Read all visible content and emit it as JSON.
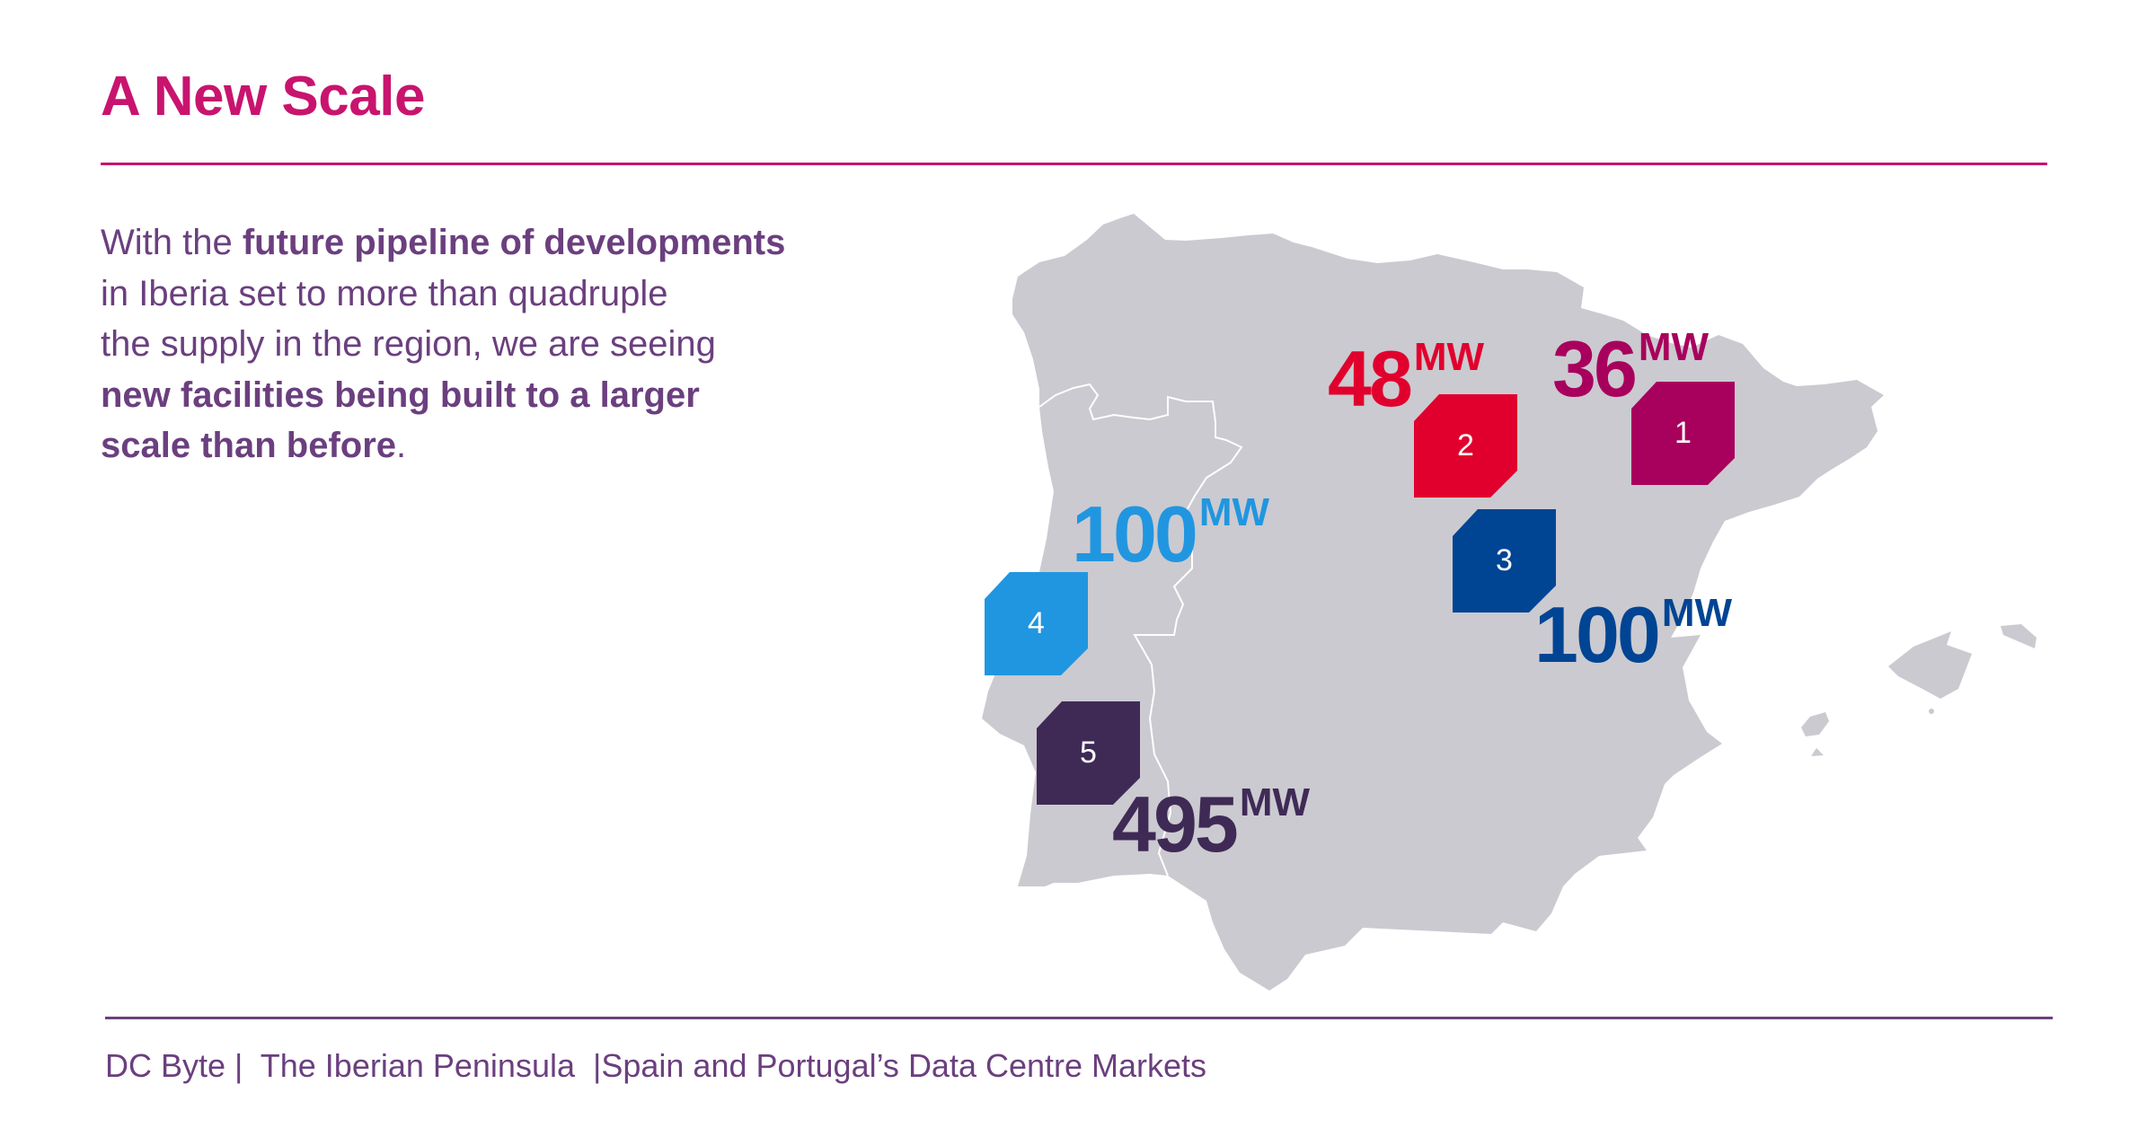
{
  "header": {
    "title": "A New Scale"
  },
  "intro": {
    "segments": [
      {
        "text": "With the ",
        "bold": false
      },
      {
        "text": "future pipeline of developments",
        "bold": true
      },
      {
        "text": " in Iberia set to more than quadruple the supply in the region, we are seeing ",
        "bold": false
      },
      {
        "text": "new facilities being built to a larger scale than before",
        "bold": true
      },
      {
        "text": ".",
        "bold": false
      }
    ]
  },
  "map": {
    "land_color": "#CBCAD0",
    "border_color": "#FFFFFF",
    "regions": [
      "Spain",
      "Portugal",
      "Balearic Islands"
    ],
    "markers": [
      {
        "id": "1",
        "value": "36",
        "unit": "MW",
        "color": "#A8005D"
      },
      {
        "id": "2",
        "value": "48",
        "unit": "MW",
        "color": "#E1002D"
      },
      {
        "id": "3",
        "value": "100",
        "unit": "MW",
        "color": "#004494"
      },
      {
        "id": "4",
        "value": "100",
        "unit": "MW",
        "color": "#2196E0"
      },
      {
        "id": "5",
        "value": "495",
        "unit": "MW",
        "color": "#3F2A56"
      }
    ]
  },
  "footer": {
    "brand": "DC Byte",
    "separator": "|",
    "report": "The Iberian Peninsula",
    "subtitle": "Spain and Portugal’s Data Centre Markets"
  },
  "colors": {
    "title": "#C8146E",
    "text": "#6B3F7F"
  }
}
